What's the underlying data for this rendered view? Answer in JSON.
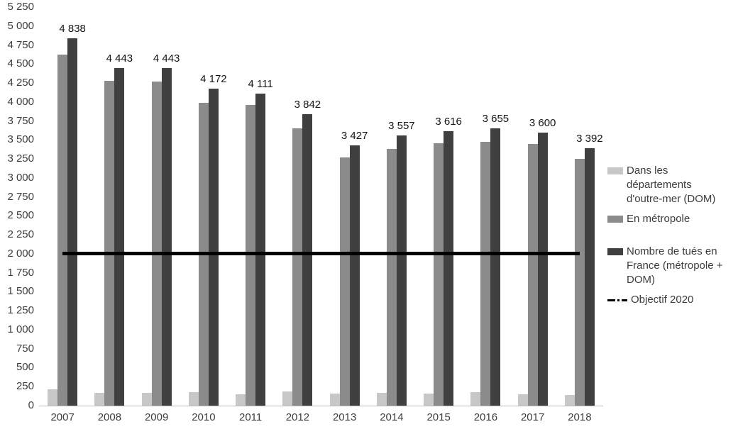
{
  "chart_data": {
    "type": "bar",
    "title": "",
    "xlabel": "",
    "ylabel": "",
    "grid": false,
    "legend_position": "right",
    "categories": [
      "2007",
      "2008",
      "2009",
      "2010",
      "2011",
      "2012",
      "2013",
      "2014",
      "2015",
      "2016",
      "2017",
      "2018"
    ],
    "series": [
      {
        "name": "Dans les départements d'outre-mer (DOM)",
        "color": "#c7c7c7",
        "values": [
          218,
          168,
          170,
          180,
          148,
          189,
          159,
          173,
          155,
          178,
          152,
          144
        ]
      },
      {
        "name": "En métropole",
        "color": "#8b8b8b",
        "values": [
          4620,
          4275,
          4273,
          3992,
          3963,
          3653,
          3268,
          3384,
          3461,
          3477,
          3448,
          3248
        ]
      },
      {
        "name": "Nombre de tués en France (métropole + DOM)",
        "color": "#404040",
        "values": [
          4838,
          4443,
          4443,
          4172,
          4111,
          3842,
          3427,
          3557,
          3616,
          3655,
          3600,
          3392
        ],
        "data_labels": [
          "4 838",
          "4 443",
          "4 443",
          "4 172",
          "4 111",
          "3 842",
          "3 427",
          "3 557",
          "3 616",
          "3 655",
          "3 600",
          "3 392"
        ]
      }
    ],
    "target_line": {
      "name": "Objectif 2020",
      "value": 2000,
      "color": "#000000",
      "style": "dash-dot-thick"
    },
    "ylim": [
      0,
      5250
    ],
    "ytick_step": 250,
    "ytick_labels": [
      "0",
      "250",
      "500",
      "750",
      "1 000",
      "1 250",
      "1 500",
      "1 750",
      "2 000",
      "2 250",
      "2 500",
      "2 750",
      "3 000",
      "3 250",
      "3 500",
      "3 750",
      "4 000",
      "4 250",
      "4 500",
      "4 750",
      "5 000",
      "5 250"
    ]
  }
}
